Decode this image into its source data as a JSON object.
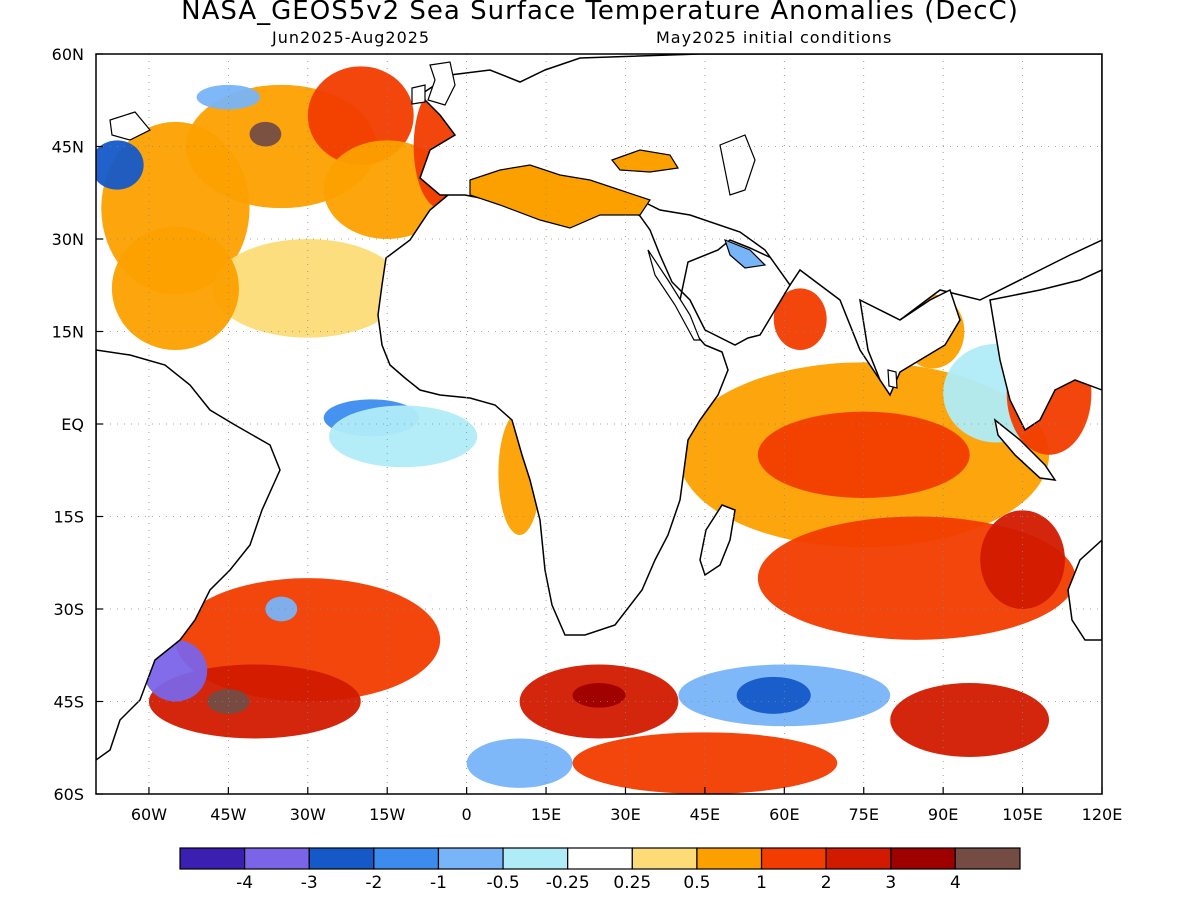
{
  "title": "NASA_GEOS5v2 Sea Surface Temperature Anomalies (DecC)",
  "subtitle_period": "Jun2025-Aug2025",
  "subtitle_init": "May2025 initial conditions",
  "map": {
    "lon_range": [
      -70,
      120
    ],
    "lat_range": [
      -60,
      60
    ],
    "lat_ticks": [
      {
        "lat": 60,
        "label": "60N"
      },
      {
        "lat": 45,
        "label": "45N"
      },
      {
        "lat": 30,
        "label": "30N"
      },
      {
        "lat": 15,
        "label": "15N"
      },
      {
        "lat": 0,
        "label": "EQ"
      },
      {
        "lat": -15,
        "label": "15S"
      },
      {
        "lat": -30,
        "label": "30S"
      },
      {
        "lat": -45,
        "label": "45S"
      },
      {
        "lat": -60,
        "label": "60S"
      }
    ],
    "lon_ticks": [
      {
        "lon": -60,
        "label": "60W"
      },
      {
        "lon": -45,
        "label": "45W"
      },
      {
        "lon": -30,
        "label": "30W"
      },
      {
        "lon": -15,
        "label": "15W"
      },
      {
        "lon": 0,
        "label": "0"
      },
      {
        "lon": 15,
        "label": "15E"
      },
      {
        "lon": 30,
        "label": "30E"
      },
      {
        "lon": 45,
        "label": "45E"
      },
      {
        "lon": 60,
        "label": "60E"
      },
      {
        "lon": 75,
        "label": "75E"
      },
      {
        "lon": 90,
        "label": "90E"
      },
      {
        "lon": 105,
        "label": "105E"
      },
      {
        "lon": 120,
        "label": "120E"
      }
    ]
  },
  "colorbar": {
    "colors": [
      "#3a1fb0",
      "#7b64e8",
      "#1559c8",
      "#3c8cf0",
      "#78b4f8",
      "#b0ecf8",
      "#ffffff",
      "#fddc78",
      "#fca000",
      "#f23c00",
      "#d21a00",
      "#9e0000",
      "#744c44"
    ],
    "labels": [
      "-4",
      "-3",
      "-2",
      "-1",
      "-0.5",
      "-0.25",
      "0.25",
      "0.5",
      "1",
      "2",
      "3",
      "4"
    ]
  },
  "anomaly_regions": [
    {
      "lon": -55,
      "lat": 35,
      "rx": 14,
      "ry": 14,
      "level": 8
    },
    {
      "lon": -35,
      "lat": 45,
      "rx": 18,
      "ry": 10,
      "level": 8
    },
    {
      "lon": -20,
      "lat": 50,
      "rx": 10,
      "ry": 8,
      "level": 9
    },
    {
      "lon": -15,
      "lat": 38,
      "rx": 12,
      "ry": 8,
      "level": 8
    },
    {
      "lon": -30,
      "lat": 22,
      "rx": 18,
      "ry": 8,
      "level": 7
    },
    {
      "lon": -55,
      "lat": 22,
      "rx": 12,
      "ry": 10,
      "level": 8
    },
    {
      "lon": -38,
      "lat": 47,
      "rx": 3,
      "ry": 2,
      "level": 12
    },
    {
      "lon": -66,
      "lat": 42,
      "rx": 5,
      "ry": 4,
      "level": 2
    },
    {
      "lon": -45,
      "lat": 53,
      "rx": 6,
      "ry": 2,
      "level": 4
    },
    {
      "lon": -5,
      "lat": 45,
      "rx": 5,
      "ry": 10,
      "level": 9
    },
    {
      "lon": -18,
      "lat": 1,
      "rx": 9,
      "ry": 3,
      "level": 3
    },
    {
      "lon": -12,
      "lat": -2,
      "rx": 14,
      "ry": 5,
      "level": 5
    },
    {
      "lon": 10,
      "lat": -8,
      "rx": 4,
      "ry": 10,
      "level": 8
    },
    {
      "lon": 75,
      "lat": -5,
      "rx": 35,
      "ry": 15,
      "level": 8
    },
    {
      "lon": 75,
      "lat": -5,
      "rx": 20,
      "ry": 7,
      "level": 9
    },
    {
      "lon": 85,
      "lat": -25,
      "rx": 30,
      "ry": 10,
      "level": 9
    },
    {
      "lon": 105,
      "lat": -22,
      "rx": 8,
      "ry": 8,
      "level": 10
    },
    {
      "lon": -30,
      "lat": -35,
      "rx": 25,
      "ry": 10,
      "level": 9
    },
    {
      "lon": -40,
      "lat": -45,
      "rx": 20,
      "ry": 6,
      "level": 10
    },
    {
      "lon": -45,
      "lat": -45,
      "rx": 4,
      "ry": 2,
      "level": 12
    },
    {
      "lon": -55,
      "lat": -40,
      "rx": 6,
      "ry": 5,
      "level": 1
    },
    {
      "lon": -35,
      "lat": -30,
      "rx": 3,
      "ry": 2,
      "level": 4
    },
    {
      "lon": 25,
      "lat": -45,
      "rx": 15,
      "ry": 6,
      "level": 10
    },
    {
      "lon": 25,
      "lat": -44,
      "rx": 5,
      "ry": 2,
      "level": 11
    },
    {
      "lon": 60,
      "lat": -44,
      "rx": 20,
      "ry": 5,
      "level": 4
    },
    {
      "lon": 58,
      "lat": -44,
      "rx": 7,
      "ry": 3,
      "level": 2
    },
    {
      "lon": 95,
      "lat": -48,
      "rx": 15,
      "ry": 6,
      "level": 10
    },
    {
      "lon": 45,
      "lat": -55,
      "rx": 25,
      "ry": 5,
      "level": 9
    },
    {
      "lon": 10,
      "lat": -55,
      "rx": 10,
      "ry": 4,
      "level": 4
    },
    {
      "lon": 100,
      "lat": 5,
      "rx": 10,
      "ry": 8,
      "level": 5
    },
    {
      "lon": 110,
      "lat": 5,
      "rx": 8,
      "ry": 10,
      "level": 9
    },
    {
      "lon": 63,
      "lat": 17,
      "rx": 5,
      "ry": 5,
      "level": 9
    },
    {
      "lon": 88,
      "lat": 15,
      "rx": 6,
      "ry": 6,
      "level": 8
    },
    {
      "lon": 18,
      "lat": 38,
      "rx": 16,
      "ry": 4,
      "level": 8
    }
  ]
}
